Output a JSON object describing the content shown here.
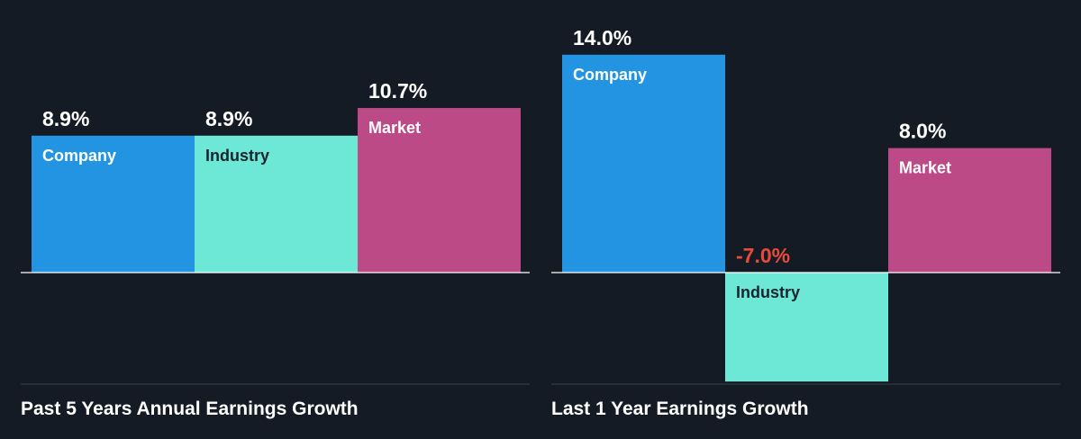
{
  "chart_data": [
    {
      "type": "bar",
      "title": "Past 5 Years Annual Earnings Growth",
      "categories": [
        "Company",
        "Industry",
        "Market"
      ],
      "values": [
        8.9,
        8.9,
        10.7
      ],
      "value_labels": [
        "8.9%",
        "8.9%",
        "10.7%"
      ],
      "colors": [
        "#2394e1",
        "#6ee8d6",
        "#bc4a87"
      ],
      "label_colors": [
        "#ffffff",
        "#1c2330",
        "#ffffff"
      ],
      "value_label_colors": [
        "#ffffff",
        "#ffffff",
        "#ffffff"
      ],
      "unit": "%"
    },
    {
      "type": "bar",
      "title": "Last 1 Year Earnings Growth",
      "categories": [
        "Company",
        "Industry",
        "Market"
      ],
      "values": [
        14.0,
        -7.0,
        8.0
      ],
      "value_labels": [
        "14.0%",
        "-7.0%",
        "8.0%"
      ],
      "colors": [
        "#2394e1",
        "#6ee8d6",
        "#bc4a87"
      ],
      "label_colors": [
        "#ffffff",
        "#1c2330",
        "#ffffff"
      ],
      "value_label_colors": [
        "#ffffff",
        "#e64b3c",
        "#ffffff"
      ],
      "unit": "%"
    }
  ]
}
